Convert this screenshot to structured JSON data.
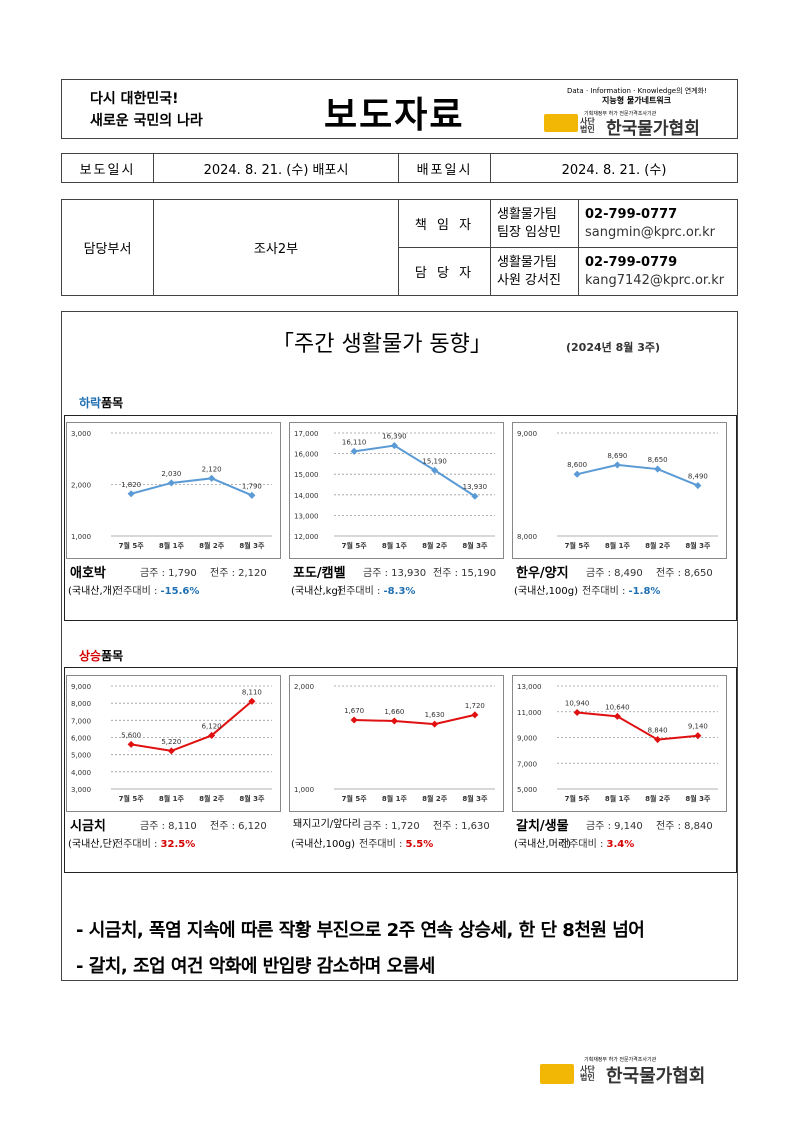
{
  "header": {
    "slogan_line1": "다시 대한민국!",
    "slogan_line2": "새로운 국민의 나라",
    "title": "보도자료",
    "logo_tagline": "Data · Information · Knowledge의 연계화!",
    "logo_tagline2": "지능형 물가네트워크",
    "logo_small": "기획재정부 허가 전문가격조사기관",
    "logo_org_prefix": "사단법인",
    "logo_org": "한국물가협회"
  },
  "release": {
    "label1": "보도일시",
    "value1": "2024. 8. 21. (수) 배포시",
    "label2": "배포일시",
    "value2": "2024. 8. 21. (수)"
  },
  "contact": {
    "dept_label": "담당부서",
    "dept_value": "조사2부",
    "role1": "책 임 자",
    "team1": "생활물가팀",
    "person1": "팀장 임상민",
    "phone1": "02-799-0777",
    "email1": "sangmin@kprc.or.kr",
    "role2": "담 당 자",
    "team2": "생활물가팀",
    "person2": "사원 강서진",
    "phone2": "02-799-0779",
    "email2": "kang7142@kprc.or.kr"
  },
  "report": {
    "title": "「주간 생활물가 동향」",
    "subtitle": "(2024년 8월 3주)",
    "falling_prefix": "하락",
    "falling_suffix": "품목",
    "rising_prefix": "상승",
    "rising_suffix": "품목",
    "this_week_label": "금주 : ",
    "prev_week_label": "전주 : ",
    "change_label": "전주대비 : "
  },
  "chart_data": [
    {
      "type": "line",
      "item": "애호박",
      "unit": "(국내산,개)",
      "categories": [
        "7월 5주",
        "8월 1주",
        "8월 2주",
        "8월 3주"
      ],
      "values": [
        1820,
        2030,
        2120,
        1790
      ],
      "labels": [
        "1,820",
        "2,030",
        "2,120",
        "1,790"
      ],
      "ylim": [
        1000,
        3000
      ],
      "yticks": [
        "1,000",
        "2,000",
        "3,000"
      ],
      "ytick_vals": [
        1000,
        2000,
        3000
      ],
      "color": "#5b9bd5",
      "this_week": "1,790",
      "prev_week": "2,120",
      "change": "-15.6%",
      "trend": "down"
    },
    {
      "type": "line",
      "item": "포도/캠벨",
      "unit": "(국내산,kg)",
      "categories": [
        "7월 5주",
        "8월 1주",
        "8월 2주",
        "8월 3주"
      ],
      "values": [
        16110,
        16390,
        15190,
        13930
      ],
      "labels": [
        "16,110",
        "16,390",
        "15,190",
        "13,930"
      ],
      "ylim": [
        12000,
        17000
      ],
      "yticks": [
        "12,000",
        "13,000",
        "14,000",
        "15,000",
        "16,000",
        "17,000"
      ],
      "ytick_vals": [
        12000,
        13000,
        14000,
        15000,
        16000,
        17000
      ],
      "color": "#5b9bd5",
      "this_week": "13,930",
      "prev_week": "15,190",
      "change": "-8.3%",
      "trend": "down"
    },
    {
      "type": "line",
      "item": "한우/양지",
      "unit": "(국내산,100g)",
      "categories": [
        "7월 5주",
        "8월 1주",
        "8월 2주",
        "8월 3주"
      ],
      "values": [
        8600,
        8690,
        8650,
        8490
      ],
      "labels": [
        "8,600",
        "8,690",
        "8,650",
        "8,490"
      ],
      "ylim": [
        8000,
        9000
      ],
      "yticks": [
        "8,000",
        "9,000"
      ],
      "ytick_vals": [
        8000,
        9000
      ],
      "color": "#5b9bd5",
      "this_week": "8,490",
      "prev_week": "8,650",
      "change": "-1.8%",
      "trend": "down"
    },
    {
      "type": "line",
      "item": "시금치",
      "unit": "(국내산,단)",
      "categories": [
        "7월 5주",
        "8월 1주",
        "8월 2주",
        "8월 3주"
      ],
      "values": [
        5600,
        5220,
        6120,
        8110
      ],
      "labels": [
        "5,600",
        "5,220",
        "6,120",
        "8,110"
      ],
      "ylim": [
        3000,
        9000
      ],
      "yticks": [
        "3,000",
        "4,000",
        "5,000",
        "6,000",
        "7,000",
        "8,000",
        "9,000"
      ],
      "ytick_vals": [
        3000,
        4000,
        5000,
        6000,
        7000,
        8000,
        9000
      ],
      "color": "#e01010",
      "this_week": "8,110",
      "prev_week": "6,120",
      "change": "32.5%",
      "trend": "up"
    },
    {
      "type": "line",
      "item": "돼지고기/앞다리",
      "unit": "(국내산,100g)",
      "categories": [
        "7월 5주",
        "8월 1주",
        "8월 2주",
        "8월 3주"
      ],
      "values": [
        1670,
        1660,
        1630,
        1720
      ],
      "labels": [
        "1,670",
        "1,660",
        "1,630",
        "1,720"
      ],
      "ylim": [
        1000,
        2000
      ],
      "yticks": [
        "1,000",
        "2,000"
      ],
      "ytick_vals": [
        1000,
        2000
      ],
      "color": "#e01010",
      "this_week": "1,720",
      "prev_week": "1,630",
      "change": "5.5%",
      "trend": "up"
    },
    {
      "type": "line",
      "item": "갈치/생물",
      "unit": "(국내산,머리)",
      "categories": [
        "7월 5주",
        "8월 1주",
        "8월 2주",
        "8월 3주"
      ],
      "values": [
        10940,
        10640,
        8840,
        9140
      ],
      "labels": [
        "10,940",
        "10,640",
        "8,840",
        "9,140"
      ],
      "ylim": [
        5000,
        13000
      ],
      "yticks": [
        "5,000",
        "7,000",
        "9,000",
        "11,000",
        "13,000"
      ],
      "ytick_vals": [
        5000,
        7000,
        9000,
        11000,
        13000
      ],
      "color": "#e01010",
      "this_week": "9,140",
      "prev_week": "8,840",
      "change": "3.4%",
      "trend": "up"
    }
  ],
  "bullets": [
    "- 시금치, 폭염 지속에 따른 작황 부진으로 2주 연속 상승세, 한 단 8천원 넘어",
    "- 갈치, 조업 여건 악화에 반입량 감소하며 오름세"
  ],
  "colors": {
    "falling": "#1f6fb2",
    "rising": "#d40000",
    "logo_yellow": "#f2b705"
  }
}
